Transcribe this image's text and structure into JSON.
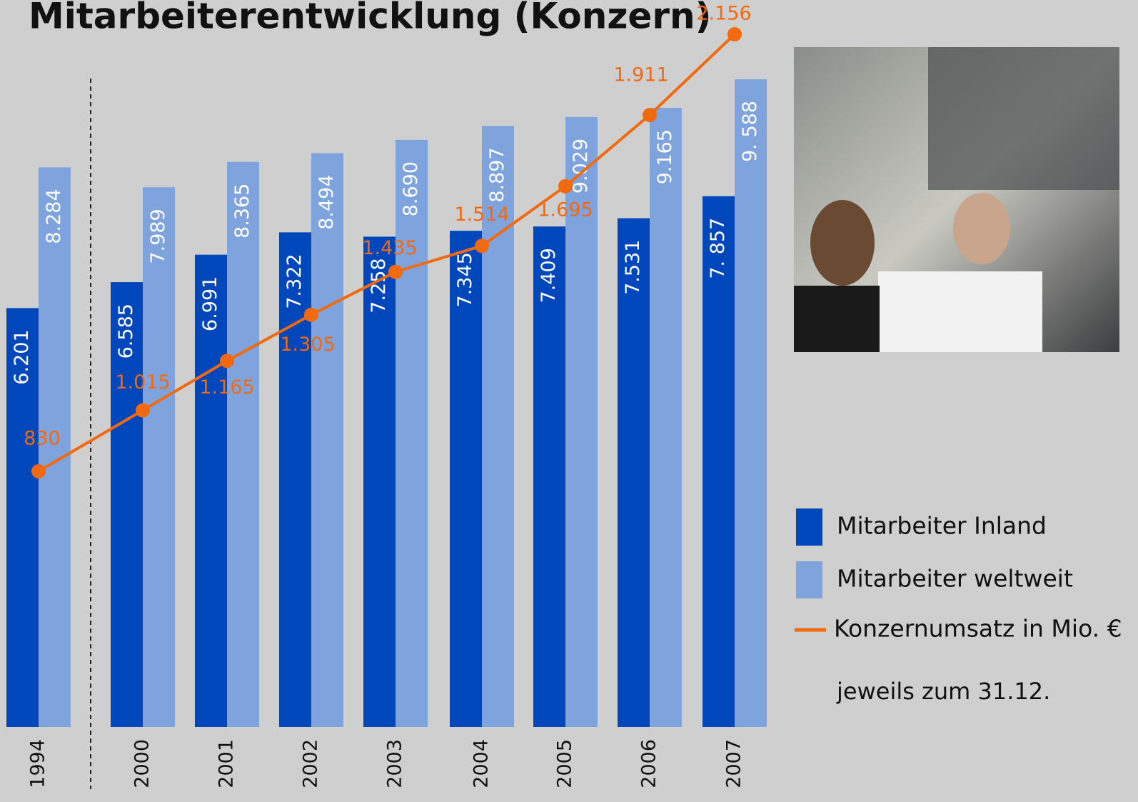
{
  "chart_data": {
    "type": "bar",
    "title": "Mitarbeiterentwicklung (Konzern)",
    "categories": [
      "1994",
      "2000",
      "2001",
      "2002",
      "2003",
      "2004",
      "2005",
      "2006",
      "2007"
    ],
    "series": [
      {
        "name": "Mitarbeiter Inland",
        "color": "#0047bb",
        "values": [
          6201,
          6585,
          6991,
          7322,
          7258,
          7345,
          7409,
          7531,
          7857
        ],
        "value_labels": [
          "6.201",
          "6.585",
          "6.991",
          "7.322",
          "7.258",
          "7.345",
          "7.409",
          "7.531",
          "7. 857"
        ]
      },
      {
        "name": "Mitarbeiter weltweit",
        "color": "#7fa3dc",
        "values": [
          8284,
          7989,
          8365,
          8494,
          8690,
          8897,
          9029,
          9165,
          9588
        ],
        "value_labels": [
          "8.284",
          "7.989",
          "8.365",
          "8.494",
          "8.690",
          "8.897",
          "9.029",
          "9.165",
          "9. 588"
        ]
      },
      {
        "name": "Konzernumsatz in Mio. €",
        "color": "#f26a10",
        "type": "line",
        "axis": "y2",
        "values": [
          830,
          1015,
          1165,
          1305,
          1435,
          1514,
          1695,
          1911,
          2156
        ],
        "value_labels": [
          "830",
          "1.015",
          "1.165",
          "1.305",
          "1.435",
          "1.514",
          "1.695",
          "1.911",
          "2.156"
        ]
      }
    ],
    "annotation": "jeweils zum 31.12."
  }
}
